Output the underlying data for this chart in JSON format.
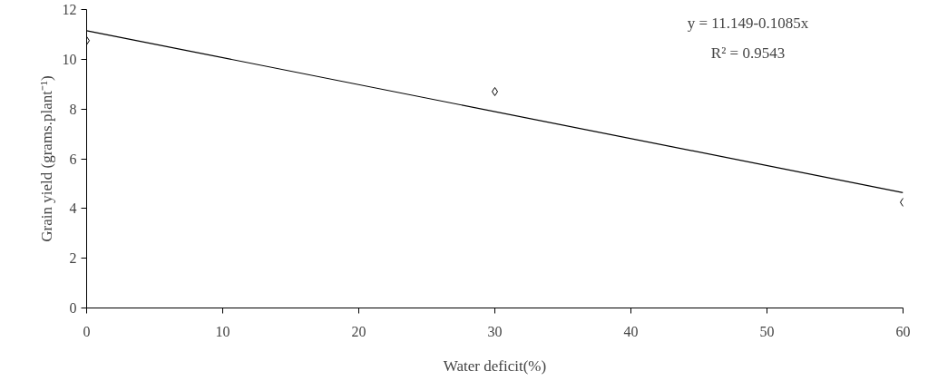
{
  "chart_data": {
    "type": "scatter",
    "xlabel": "Water deficit(%)",
    "ylabel": "Grain yield (grams.plant⁻¹)",
    "x": [
      0,
      30,
      60
    ],
    "series": [
      {
        "color": "#000000",
        "marker": "diamond",
        "values": [
          10.75,
          8.7,
          4.25
        ]
      },
      {
        "type": "line",
        "color": "#000000",
        "x": [
          0,
          60
        ],
        "values": [
          11.15,
          4.64
        ],
        "line_style": "solid"
      }
    ],
    "xlim": [
      0,
      60
    ],
    "ylim": [
      0,
      12
    ],
    "xticks": [
      0,
      10,
      20,
      30,
      40,
      50,
      60
    ],
    "yticks": [
      0,
      2,
      4,
      6,
      8,
      10,
      12
    ],
    "grid": false,
    "annotations": [
      "y = 11.149-0.1085x",
      "R² = 0.9543"
    ]
  }
}
